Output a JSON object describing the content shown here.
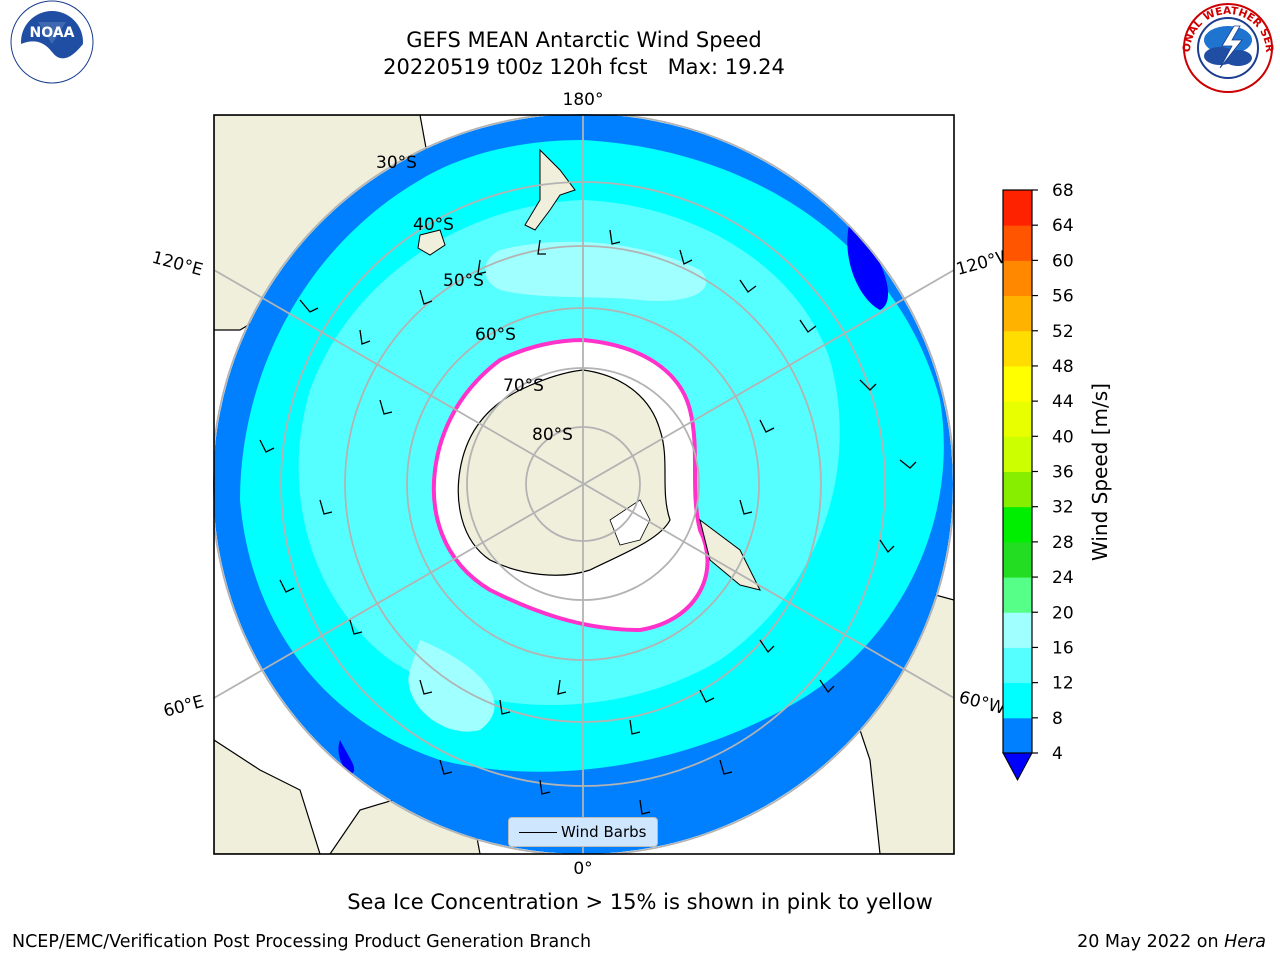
{
  "title": {
    "line1": "GEFS MEAN Antarctic Wind Speed",
    "line2": "20220519 t00z 120h fcst   Max: 19.24"
  },
  "map": {
    "projection": "south-polar-stereographic",
    "longitude_labels": {
      "top": "180°",
      "bottom": "0°",
      "upper_left": "120°E",
      "upper_right": "120°W",
      "lower_left": "60°E",
      "lower_right": "60°W"
    },
    "latitude_labels": [
      "30°S",
      "40°S",
      "50°S",
      "60°S",
      "70°S",
      "80°S"
    ],
    "legend": {
      "label": "Wind Barbs"
    },
    "colors": {
      "ocean_4_8": "#0080ff",
      "ocean_8_12": "#00ffff",
      "ocean_12_16": "#55ffff",
      "ocean_16_20": "#a0ffff",
      "land": "#efefdc",
      "sea_ice_edge": "#ff33cc",
      "antarctic_ice": "#ffffff",
      "graticule": "#b3b3b3"
    }
  },
  "colorbar": {
    "label": "Wind Speed [m/s]",
    "ticks": [
      4,
      8,
      12,
      16,
      20,
      24,
      28,
      32,
      36,
      40,
      44,
      48,
      52,
      56,
      60,
      64,
      68
    ],
    "colors": [
      "#0080ff",
      "#00ffff",
      "#55ffff",
      "#a0ffff",
      "#55ff88",
      "#22dd22",
      "#00ee00",
      "#88ee00",
      "#ccff00",
      "#e8ff00",
      "#ffff00",
      "#ffdd00",
      "#ffb300",
      "#ff8800",
      "#ff5500",
      "#ff2200"
    ],
    "extend_color": "#0000ff"
  },
  "logos": {
    "left": {
      "name": "noaa-logo",
      "text": "NOAA"
    },
    "right": {
      "name": "nws-logo",
      "text": "NATIONAL WEATHER SERVICE"
    }
  },
  "footer": {
    "note": "Sea Ice Concentration > 15% is shown in pink to yellow",
    "left": "NCEP/EMC/Verification Post Processing Product Generation Branch",
    "right_date": "20 May 2022 on ",
    "right_machine": "Hera"
  }
}
